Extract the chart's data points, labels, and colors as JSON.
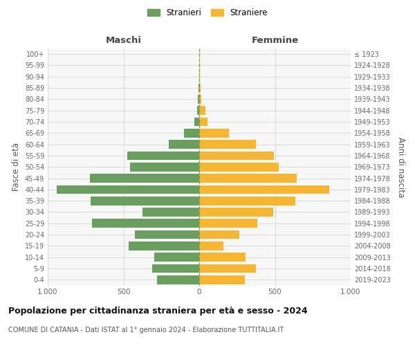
{
  "age_groups": [
    "0-4",
    "5-9",
    "10-14",
    "15-19",
    "20-24",
    "25-29",
    "30-34",
    "35-39",
    "40-44",
    "45-49",
    "50-54",
    "55-59",
    "60-64",
    "65-69",
    "70-74",
    "75-79",
    "80-84",
    "85-89",
    "90-94",
    "95-99",
    "100+"
  ],
  "birth_years": [
    "2019-2023",
    "2014-2018",
    "2009-2013",
    "2004-2008",
    "1999-2003",
    "1994-1998",
    "1989-1993",
    "1984-1988",
    "1979-1983",
    "1974-1978",
    "1969-1973",
    "1964-1968",
    "1959-1963",
    "1954-1958",
    "1949-1953",
    "1944-1948",
    "1939-1943",
    "1934-1938",
    "1929-1933",
    "1924-1928",
    "≤ 1923"
  ],
  "maschi": [
    280,
    310,
    295,
    465,
    425,
    710,
    375,
    715,
    940,
    720,
    455,
    475,
    200,
    100,
    30,
    15,
    10,
    5,
    2,
    1,
    0
  ],
  "femmine": [
    300,
    375,
    305,
    160,
    265,
    385,
    490,
    635,
    860,
    645,
    525,
    495,
    375,
    195,
    55,
    40,
    15,
    10,
    5,
    2,
    0
  ],
  "color_maschi": "#6a9e5e",
  "color_femmine": "#f5b731",
  "color_grid": "#cccccc",
  "color_dashed": "#888800",
  "xlim": 1000,
  "title": "Popolazione per cittadinanza straniera per età e sesso - 2024",
  "subtitle": "COMUNE DI CATANIA - Dati ISTAT al 1° gennaio 2024 - Elaborazione TUTTITALIA.IT",
  "ylabel_left": "Fasce di età",
  "ylabel_right": "Anni di nascita",
  "header_left": "Maschi",
  "header_right": "Femmine",
  "legend_maschi": "Stranieri",
  "legend_femmine": "Straniere",
  "tick_labels": [
    "1.000",
    "500",
    "0",
    "500",
    "1.000"
  ],
  "tick_values": [
    -1000,
    -500,
    0,
    500,
    1000
  ],
  "bg_color": "#ffffff",
  "plot_bg_color": "#f7f7f7"
}
